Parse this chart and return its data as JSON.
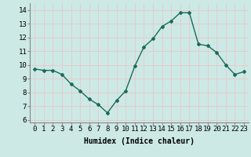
{
  "x": [
    0,
    1,
    2,
    3,
    4,
    5,
    6,
    7,
    8,
    9,
    10,
    11,
    12,
    13,
    14,
    15,
    16,
    17,
    18,
    19,
    20,
    21,
    22,
    23
  ],
  "y": [
    9.7,
    9.6,
    9.6,
    9.3,
    8.6,
    8.1,
    7.5,
    7.1,
    6.5,
    7.4,
    8.1,
    9.9,
    11.3,
    11.9,
    12.8,
    13.2,
    13.8,
    13.8,
    11.5,
    11.4,
    10.9,
    10.0,
    9.3,
    9.5
  ],
  "line_color": "#1a6b5a",
  "marker": "D",
  "marker_size": 2.0,
  "bg_color": "#cce9e5",
  "grid_color": "#e8c8c8",
  "xlabel": "Humidex (Indice chaleur)",
  "xlabel_fontsize": 7,
  "xlim": [
    -0.5,
    23.5
  ],
  "ylim": [
    5.8,
    14.5
  ],
  "yticks": [
    6,
    7,
    8,
    9,
    10,
    11,
    12,
    13,
    14
  ],
  "xticks": [
    0,
    1,
    2,
    3,
    4,
    5,
    6,
    7,
    8,
    9,
    10,
    11,
    12,
    13,
    14,
    15,
    16,
    17,
    18,
    19,
    20,
    21,
    22,
    23
  ],
  "tick_fontsize": 6.5,
  "line_width": 1.0
}
